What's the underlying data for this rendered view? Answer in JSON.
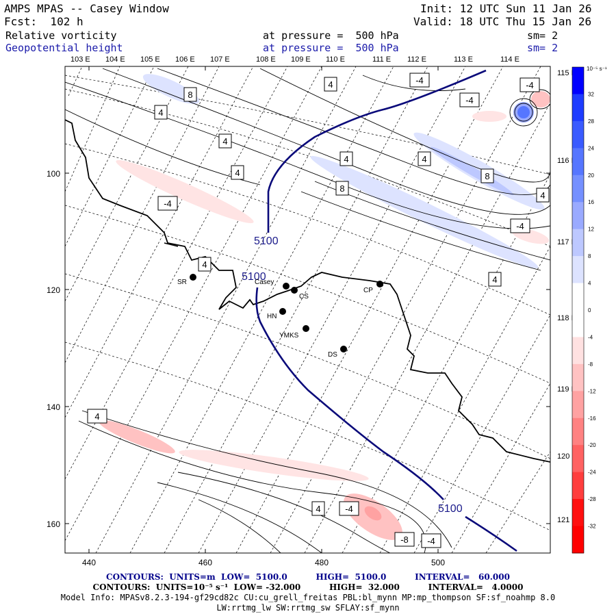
{
  "header": {
    "title": "AMPS MPAS -- Casey Window",
    "fcst": "Fcst:  102 h",
    "init": "Init: 12 UTC Sun 11 Jan 26",
    "valid": "Valid: 18 UTC Thu 15 Jan 26",
    "field1": {
      "name": "Relative vorticity",
      "level": "at pressure =  500 hPa",
      "sm": "sm= 2"
    },
    "field2": {
      "name": "Geopotential height",
      "level": "at pressure =  500 hPa",
      "sm": "sm= 2"
    }
  },
  "map": {
    "top_lon_labels": [
      "103 E",
      "104 E",
      "105 E",
      "106 E",
      "107 E",
      "108 E",
      "109 E",
      "110 E",
      "111 E",
      "112 E",
      "113 E",
      "114 E"
    ],
    "right_lon_labels": [
      "115 E",
      "116 E",
      "117 E",
      "118 E",
      "119 E",
      "120 E",
      "121 E"
    ],
    "x_ticks": [
      "440",
      "460",
      "480",
      "500"
    ],
    "y_ticks": [
      "100",
      "120",
      "140",
      "160"
    ],
    "stations": [
      {
        "label": "SR"
      },
      {
        "label": "Casey"
      },
      {
        "label": "CS"
      },
      {
        "label": "HN"
      },
      {
        "label": "YMKS"
      },
      {
        "label": "DS"
      },
      {
        "label": "CP"
      }
    ],
    "height_labels": [
      "5100",
      "5100",
      "5100"
    ],
    "vort_labels": [
      "8",
      "4",
      "4",
      "4",
      "-4",
      "4",
      "4",
      "-4",
      "-4",
      "4",
      "4",
      "8",
      "8",
      "-4",
      "4",
      "4",
      "-4",
      "4",
      "-8",
      "-4",
      "-4"
    ]
  },
  "colorbar": {
    "unit": "10⁻⁵ s⁻¹",
    "ticks": [
      "32",
      "28",
      "24",
      "20",
      "16",
      "12",
      "8",
      "4",
      "0",
      "-4",
      "-8",
      "-12",
      "-16",
      "-20",
      "-24",
      "-28",
      "-32"
    ],
    "colors": [
      "#0000ff",
      "#1e3cff",
      "#3a5bff",
      "#5676ff",
      "#7590ff",
      "#9aaaff",
      "#bdc8ff",
      "#dde3ff",
      "#ffffff",
      "#ffffff",
      "#ffe1e1",
      "#ffc2c2",
      "#ffa2a2",
      "#ff8282",
      "#ff6262",
      "#ff3e3e",
      "#ff1010",
      "#ff0000"
    ]
  },
  "footer": {
    "line1": "CONTOURS:  UNITS=m  LOW=  5100.0          HIGH=  5100.0          INTERVAL=   60.000",
    "line2": "CONTOURS:  UNITS=10⁻⁵ s⁻¹  LOW= -32.000          HIGH=  32.000          INTERVAL=   4.0000",
    "line3": "Model Info: MPASv8.2.3-194-gf29cd82c CU:cu_grell_freitas PBL:bl_mynn MP:mp_thompson SF:sf_noahmp 8.0",
    "line4": "LW:rrtmg_lw SW:rrtmg_sw SFLAY:sf_mynn"
  }
}
